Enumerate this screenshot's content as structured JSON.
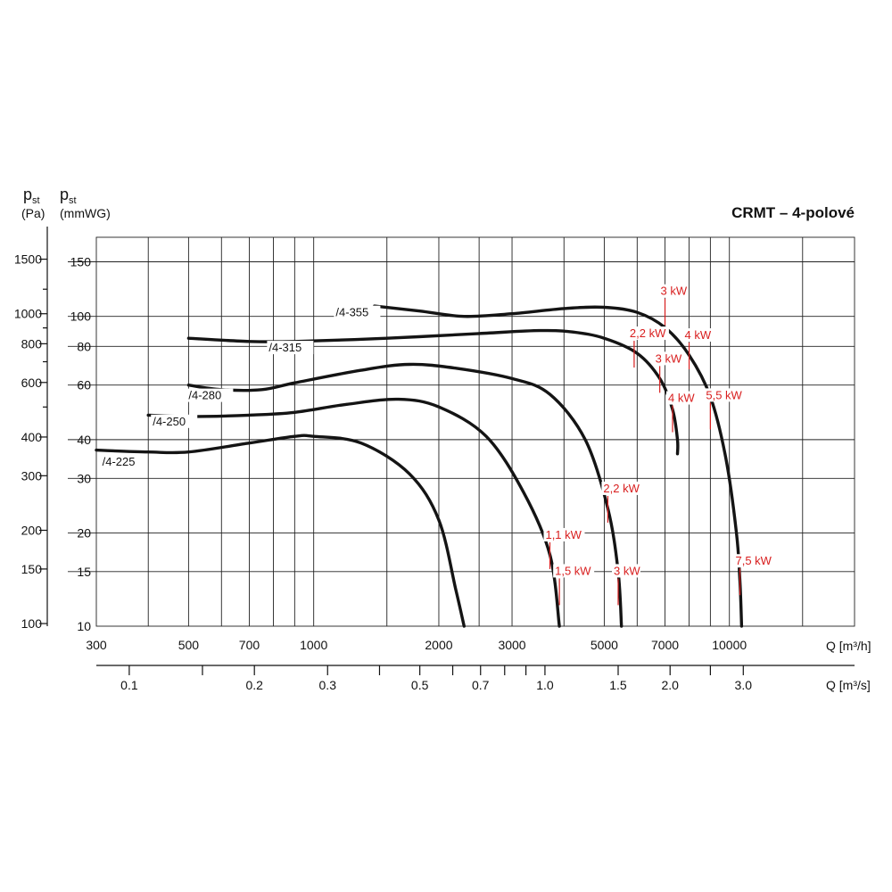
{
  "chart_data": {
    "type": "line",
    "title": "CRMT – 4-polové",
    "y_left_pa": {
      "label": "p",
      "label_sub": "st",
      "unit": "(Pa)",
      "ticks": [
        100,
        150,
        200,
        300,
        400,
        600,
        800,
        1000,
        1500
      ]
    },
    "y_left_mmwg": {
      "label": "p",
      "label_sub": "st",
      "unit": "(mmWG)",
      "ticks": [
        10,
        15,
        20,
        30,
        40,
        60,
        80,
        100,
        150
      ],
      "range": [
        10,
        180
      ],
      "scale": "log"
    },
    "x_m3h": {
      "label": "Q [m³/h]",
      "ticks": [
        300,
        500,
        700,
        1000,
        2000,
        3000,
        5000,
        7000,
        10000
      ],
      "range": [
        300,
        20000
      ],
      "scale": "log"
    },
    "x_m3s": {
      "label": "Q [m³/s]",
      "ticks": [
        0.1,
        0.2,
        0.3,
        0.5,
        0.7,
        1.0,
        1.5,
        2.0,
        3.0
      ],
      "tick_labels": [
        "0.1",
        "0.2",
        "0.3",
        "0.5",
        "0.7",
        "1.0",
        "1.5",
        "2.0",
        "3.0"
      ]
    },
    "series": [
      {
        "name": "/4-225",
        "points": [
          [
            300,
            37
          ],
          [
            400,
            36.5
          ],
          [
            500,
            36.5
          ],
          [
            700,
            39
          ],
          [
            900,
            41
          ],
          [
            1000,
            41
          ],
          [
            1300,
            39
          ],
          [
            1700,
            31
          ],
          [
            2000,
            22
          ],
          [
            2200,
            13
          ],
          [
            2300,
            10
          ]
        ]
      },
      {
        "name": "/4-250",
        "points": [
          [
            400,
            48
          ],
          [
            500,
            47.5
          ],
          [
            700,
            48
          ],
          [
            900,
            49
          ],
          [
            1200,
            52
          ],
          [
            1600,
            54
          ],
          [
            2000,
            51
          ],
          [
            2600,
            41
          ],
          [
            3200,
            27
          ],
          [
            3700,
            17
          ],
          [
            3900,
            10
          ]
        ]
      },
      {
        "name": "/4-280",
        "points": [
          [
            500,
            60
          ],
          [
            600,
            58
          ],
          [
            750,
            58
          ],
          [
            900,
            61
          ],
          [
            1300,
            67
          ],
          [
            1700,
            70
          ],
          [
            2200,
            68
          ],
          [
            3000,
            63
          ],
          [
            3700,
            56
          ],
          [
            4500,
            40
          ],
          [
            5100,
            24
          ],
          [
            5400,
            15
          ],
          [
            5500,
            10
          ]
        ]
      },
      {
        "name": "/4-315",
        "points": [
          [
            500,
            85
          ],
          [
            700,
            83
          ],
          [
            900,
            83
          ],
          [
            1500,
            85
          ],
          [
            2500,
            88
          ],
          [
            3500,
            90
          ],
          [
            4200,
            89
          ],
          [
            5000,
            85
          ],
          [
            6000,
            76
          ],
          [
            6800,
            63
          ],
          [
            7300,
            50
          ],
          [
            7500,
            40
          ],
          [
            7500,
            36
          ]
        ]
      },
      {
        "name": "/4-355",
        "points": [
          [
            1400,
            108
          ],
          [
            1800,
            104
          ],
          [
            2300,
            100
          ],
          [
            3000,
            102
          ],
          [
            4000,
            106
          ],
          [
            5000,
            107
          ],
          [
            6000,
            103
          ],
          [
            7000,
            92
          ],
          [
            8000,
            75
          ],
          [
            9000,
            55
          ],
          [
            9800,
            35
          ],
          [
            10400,
            20
          ],
          [
            10600,
            14
          ],
          [
            10700,
            10
          ]
        ]
      }
    ],
    "power_labels": [
      {
        "text": "1,1 kW",
        "x": 3700,
        "y": 17
      },
      {
        "text": "1,5 kW",
        "x": 3900,
        "y": 13
      },
      {
        "text": "2,2 kW",
        "x": 5100,
        "y": 24
      },
      {
        "text": "3 kW",
        "x": 5400,
        "y": 13
      },
      {
        "text": "2,2 kW",
        "x": 5900,
        "y": 76
      },
      {
        "text": "3 kW",
        "x": 6800,
        "y": 63
      },
      {
        "text": "4 kW",
        "x": 7300,
        "y": 47
      },
      {
        "text": "3 kW",
        "x": 7000,
        "y": 104
      },
      {
        "text": "4 kW",
        "x": 8000,
        "y": 75
      },
      {
        "text": "5,5 kW",
        "x": 9000,
        "y": 48
      },
      {
        "text": "7,5 kW",
        "x": 10600,
        "y": 14
      }
    ]
  },
  "colors": {
    "curve": "#141414",
    "power": "#d81e1e",
    "grid": "#222222"
  }
}
